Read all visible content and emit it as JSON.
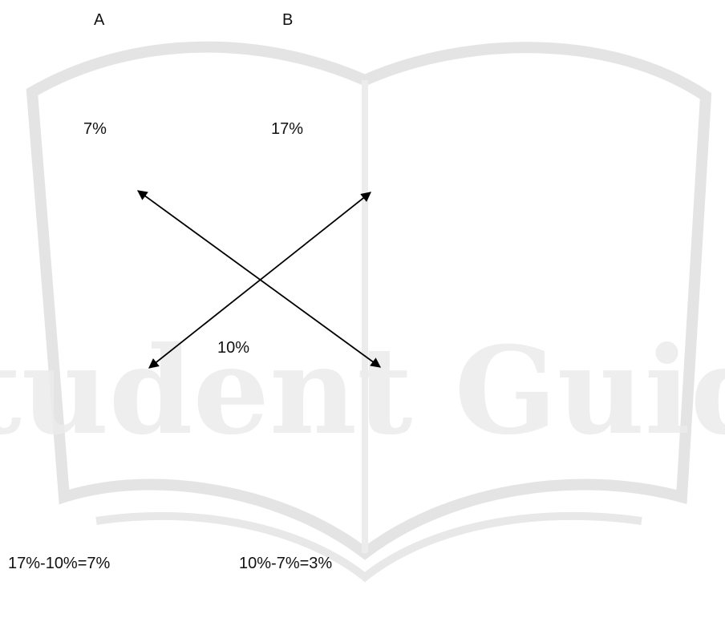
{
  "colors": {
    "text": "#111111",
    "arrow": "#000000",
    "watermark": "#e4e4e4",
    "background": "#ffffff"
  },
  "watermark": {
    "text": "Student Guide"
  },
  "labels": {
    "a_name": "A",
    "b_name": "B",
    "a_rate": "7%",
    "b_rate": "17%",
    "mean_rate": "10%",
    "a_ratio_calc": "17%-10%=7%",
    "b_ratio_calc": "10%-7%=3%"
  }
}
